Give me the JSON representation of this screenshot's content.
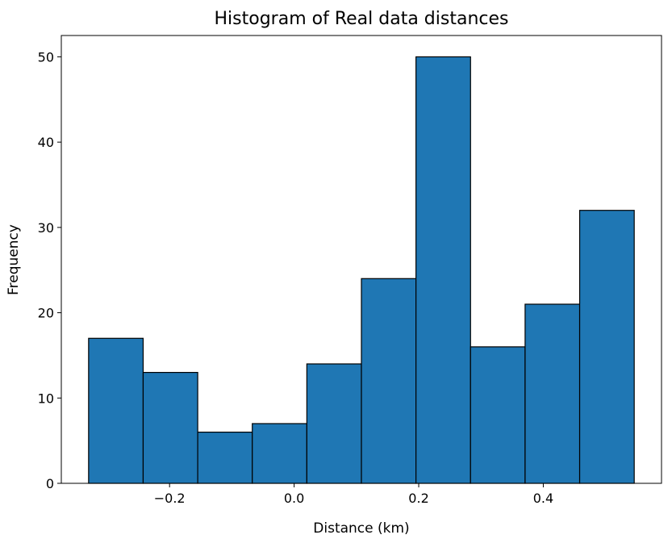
{
  "chart_data": {
    "type": "bar",
    "title": "Histogram of Real data distances",
    "xlabel": "Distance (km)",
    "ylabel": "Frequency",
    "bin_edges": [
      -0.33,
      -0.2424,
      -0.1548,
      -0.0672,
      0.0204,
      0.108,
      0.1956,
      0.2832,
      0.3708,
      0.4584,
      0.546
    ],
    "values": [
      17,
      13,
      6,
      7,
      14,
      24,
      50,
      16,
      21,
      32
    ],
    "xlim": [
      -0.3738,
      0.5898
    ],
    "ylim": [
      0,
      52.5
    ],
    "xticks": [
      -0.2,
      0.0,
      0.2,
      0.4
    ],
    "xtick_labels": [
      "−0.2",
      "0.0",
      "0.2",
      "0.4"
    ],
    "yticks": [
      0,
      10,
      20,
      30,
      40,
      50
    ],
    "ytick_labels": [
      "0",
      "10",
      "20",
      "30",
      "40",
      "50"
    ],
    "bar_color": "#1f77b4",
    "edge_color": "#000000",
    "grid": false,
    "legend": "none"
  }
}
